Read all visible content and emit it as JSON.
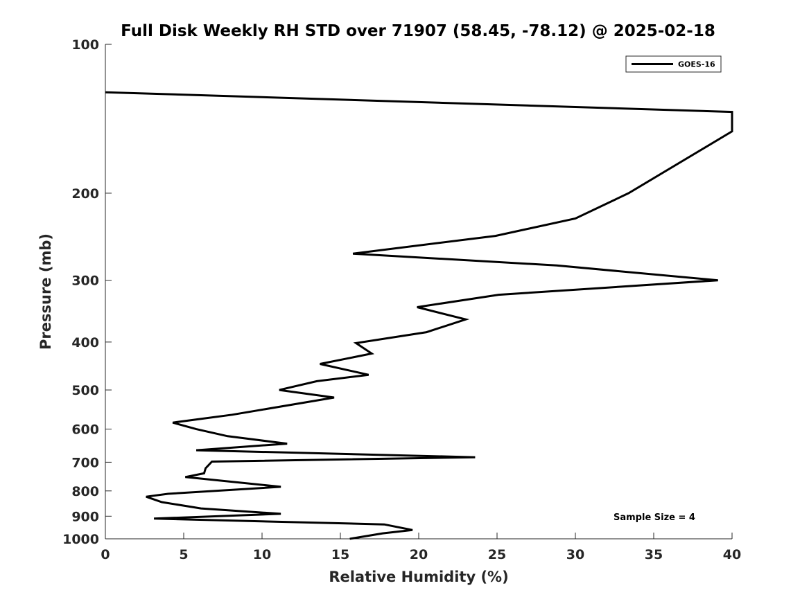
{
  "chart_data": {
    "type": "line",
    "title": "Full Disk Weekly RH STD over 71907 (58.45, -78.12) @ 2025-02-18",
    "xlabel": "Relative Humidity (%)",
    "ylabel": "Pressure (mb)",
    "xlim": [
      0,
      40
    ],
    "ylim": [
      1000,
      100
    ],
    "yscale": "log",
    "x_ticks": [
      0,
      5,
      10,
      15,
      20,
      25,
      30,
      35,
      40
    ],
    "x_tick_labels": [
      "0",
      "5",
      "10",
      "15",
      "20",
      "25",
      "30",
      "35",
      "40"
    ],
    "y_ticks": [
      100,
      200,
      300,
      400,
      500,
      600,
      700,
      800,
      900,
      1000
    ],
    "y_tick_labels": [
      "100",
      "200",
      "300",
      "400",
      "500",
      "600",
      "700",
      "800",
      "900",
      "1000"
    ],
    "legend": {
      "location": "top-right",
      "entries": [
        "GOES-16"
      ]
    },
    "annotation": "Sample Size = 4",
    "line_color": "#000000",
    "series": [
      {
        "name": "GOES-16",
        "points": [
          [
            0.0,
            125
          ],
          [
            40.0,
            137
          ],
          [
            40.0,
            150
          ],
          [
            33.4,
            200
          ],
          [
            30.0,
            225
          ],
          [
            24.9,
            244
          ],
          [
            15.8,
            265
          ],
          [
            28.8,
            280
          ],
          [
            39.1,
            300
          ],
          [
            25.1,
            321
          ],
          [
            19.9,
            340
          ],
          [
            23.0,
            360
          ],
          [
            20.5,
            382
          ],
          [
            16.0,
            402
          ],
          [
            17.0,
            422
          ],
          [
            13.7,
            443
          ],
          [
            16.8,
            466
          ],
          [
            13.5,
            480
          ],
          [
            11.1,
            500
          ],
          [
            14.6,
            518
          ],
          [
            8.1,
            561
          ],
          [
            4.3,
            582
          ],
          [
            5.8,
            600
          ],
          [
            7.8,
            620
          ],
          [
            11.6,
            642
          ],
          [
            5.8,
            662
          ],
          [
            23.6,
            684
          ],
          [
            6.8,
            698
          ],
          [
            6.4,
            720
          ],
          [
            6.3,
            737
          ],
          [
            5.1,
            750
          ],
          [
            11.2,
            785
          ],
          [
            4.0,
            811
          ],
          [
            2.6,
            822
          ],
          [
            3.6,
            843
          ],
          [
            6.1,
            868
          ],
          [
            11.2,
            890
          ],
          [
            3.1,
            910
          ],
          [
            17.8,
            935
          ],
          [
            19.6,
            960
          ],
          [
            17.7,
            975
          ],
          [
            15.6,
            1000
          ]
        ]
      }
    ]
  }
}
